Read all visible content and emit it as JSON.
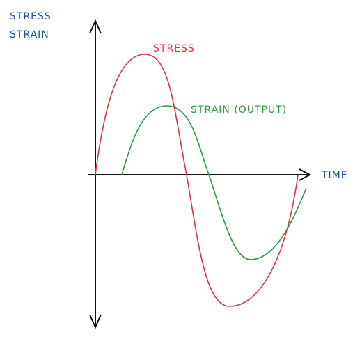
{
  "axis_labels": {
    "y": [
      "STRESS",
      "STRAIN"
    ],
    "x": "TIME"
  },
  "curves": [
    {
      "label": "STRESS"
    },
    {
      "label": "STRAIN (OUTPUT)"
    }
  ]
}
